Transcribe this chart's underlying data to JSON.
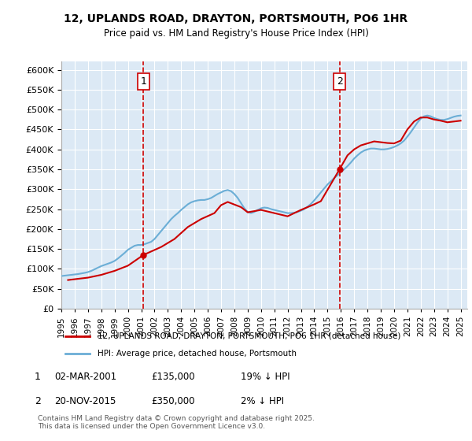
{
  "title": "12, UPLANDS ROAD, DRAYTON, PORTSMOUTH, PO6 1HR",
  "subtitle": "Price paid vs. HM Land Registry's House Price Index (HPI)",
  "xlabel": "",
  "ylabel": "",
  "ylim": [
    0,
    620000
  ],
  "yticks": [
    0,
    50000,
    100000,
    150000,
    200000,
    250000,
    300000,
    350000,
    400000,
    450000,
    500000,
    550000,
    600000
  ],
  "xlim_start": 1995.0,
  "xlim_end": 2025.5,
  "background_color": "#dce9f5",
  "line_color_red": "#cc0000",
  "line_color_blue": "#6baed6",
  "vline_color": "#cc0000",
  "marker_color": "#cc0000",
  "sale1_x": 2001.17,
  "sale1_y": 135000,
  "sale2_x": 2015.9,
  "sale2_y": 350000,
  "legend_label_red": "12, UPLANDS ROAD, DRAYTON, PORTSMOUTH, PO6 1HR (detached house)",
  "legend_label_blue": "HPI: Average price, detached house, Portsmouth",
  "annotation1_label": "1",
  "annotation2_label": "2",
  "note1": "1    02-MAR-2001         £135,000          19% ↓ HPI",
  "note2": "2    20-NOV-2015         £350,000           2% ↓ HPI",
  "footer": "Contains HM Land Registry data © Crown copyright and database right 2025.\nThis data is licensed under the Open Government Licence v3.0.",
  "hpi_x": [
    1995,
    1995.25,
    1995.5,
    1995.75,
    1996,
    1996.25,
    1996.5,
    1996.75,
    1997,
    1997.25,
    1997.5,
    1997.75,
    1998,
    1998.25,
    1998.5,
    1998.75,
    1999,
    1999.25,
    1999.5,
    1999.75,
    2000,
    2000.25,
    2000.5,
    2000.75,
    2001,
    2001.25,
    2001.5,
    2001.75,
    2002,
    2002.25,
    2002.5,
    2002.75,
    2003,
    2003.25,
    2003.5,
    2003.75,
    2004,
    2004.25,
    2004.5,
    2004.75,
    2005,
    2005.25,
    2005.5,
    2005.75,
    2006,
    2006.25,
    2006.5,
    2006.75,
    2007,
    2007.25,
    2007.5,
    2007.75,
    2008,
    2008.25,
    2008.5,
    2008.75,
    2009,
    2009.25,
    2009.5,
    2009.75,
    2010,
    2010.25,
    2010.5,
    2010.75,
    2011,
    2011.25,
    2011.5,
    2011.75,
    2012,
    2012.25,
    2012.5,
    2012.75,
    2013,
    2013.25,
    2013.5,
    2013.75,
    2014,
    2014.25,
    2014.5,
    2014.75,
    2015,
    2015.25,
    2015.5,
    2015.75,
    2016,
    2016.25,
    2016.5,
    2016.75,
    2017,
    2017.25,
    2017.5,
    2017.75,
    2018,
    2018.25,
    2018.5,
    2018.75,
    2019,
    2019.25,
    2019.5,
    2019.75,
    2020,
    2020.25,
    2020.5,
    2020.75,
    2021,
    2021.25,
    2021.5,
    2021.75,
    2022,
    2022.25,
    2022.5,
    2022.75,
    2023,
    2023.25,
    2023.5,
    2023.75,
    2024,
    2024.25,
    2024.5,
    2024.75,
    2025
  ],
  "hpi_y": [
    82000,
    83000,
    84000,
    85000,
    86000,
    87000,
    88500,
    90000,
    92000,
    95000,
    99000,
    103000,
    107000,
    110000,
    113000,
    116000,
    120000,
    126000,
    133000,
    140000,
    148000,
    153000,
    158000,
    160000,
    160000,
    162000,
    165000,
    168000,
    175000,
    185000,
    195000,
    205000,
    215000,
    225000,
    233000,
    240000,
    248000,
    255000,
    262000,
    267000,
    270000,
    272000,
    273000,
    273000,
    275000,
    278000,
    283000,
    288000,
    292000,
    296000,
    298000,
    295000,
    288000,
    278000,
    265000,
    252000,
    243000,
    240000,
    243000,
    248000,
    252000,
    254000,
    253000,
    250000,
    248000,
    246000,
    244000,
    242000,
    240000,
    240000,
    241000,
    243000,
    246000,
    250000,
    256000,
    263000,
    272000,
    282000,
    292000,
    302000,
    312000,
    320000,
    328000,
    335000,
    343000,
    350000,
    358000,
    367000,
    377000,
    385000,
    392000,
    397000,
    400000,
    402000,
    402000,
    401000,
    400000,
    400000,
    401000,
    403000,
    406000,
    410000,
    415000,
    422000,
    432000,
    443000,
    455000,
    467000,
    477000,
    483000,
    485000,
    483000,
    479000,
    476000,
    474000,
    474000,
    476000,
    479000,
    482000,
    484000,
    485000
  ],
  "price_x": [
    1995.5,
    1997.0,
    1998.0,
    1999.0,
    2000.0,
    2001.17,
    2002.5,
    2003.5,
    2004.5,
    2005.5,
    2006.5,
    2007.0,
    2007.5,
    2008.5,
    2009.0,
    2010.0,
    2011.0,
    2012.0,
    2013.0,
    2014.0,
    2014.5,
    2015.9,
    2016.5,
    2017.0,
    2017.5,
    2018.0,
    2018.5,
    2019.0,
    2019.5,
    2020.0,
    2020.5,
    2021.0,
    2021.5,
    2022.0,
    2022.5,
    2023.0,
    2023.5,
    2024.0,
    2024.5,
    2025.0
  ],
  "price_y": [
    72000,
    78000,
    85000,
    95000,
    108000,
    135000,
    155000,
    175000,
    205000,
    225000,
    240000,
    260000,
    268000,
    255000,
    242000,
    248000,
    240000,
    232000,
    248000,
    262000,
    270000,
    350000,
    385000,
    400000,
    410000,
    415000,
    420000,
    418000,
    416000,
    415000,
    422000,
    450000,
    470000,
    480000,
    480000,
    475000,
    472000,
    468000,
    470000,
    472000
  ],
  "xtick_years": [
    1995,
    1996,
    1997,
    1998,
    1999,
    2000,
    2001,
    2002,
    2003,
    2004,
    2005,
    2006,
    2007,
    2008,
    2009,
    2010,
    2011,
    2012,
    2013,
    2014,
    2015,
    2016,
    2017,
    2018,
    2019,
    2020,
    2021,
    2022,
    2023,
    2024,
    2025
  ]
}
